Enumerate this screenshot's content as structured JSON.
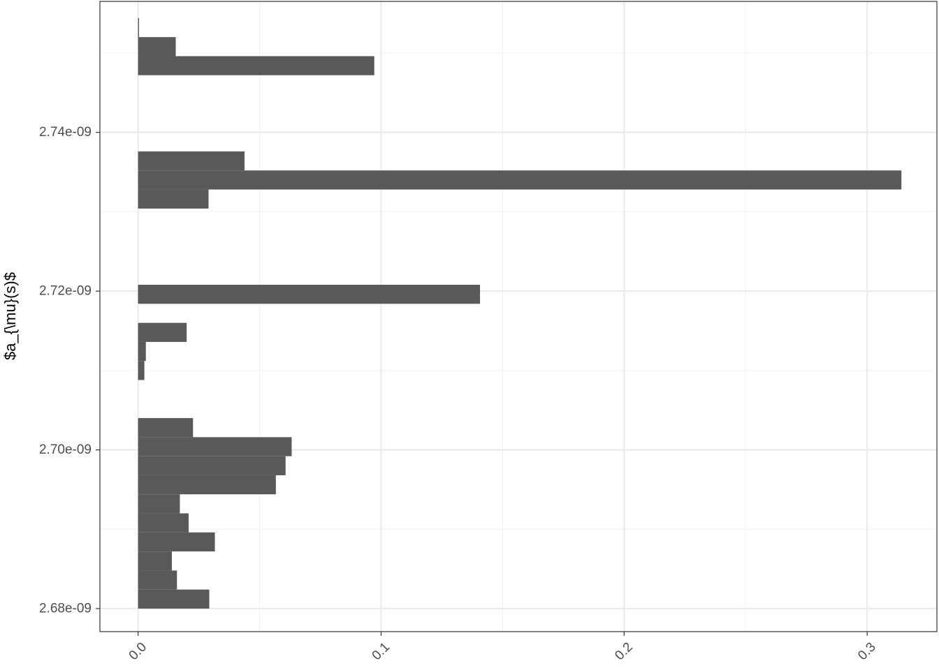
{
  "chart_data": {
    "type": "bar",
    "orientation": "horizontal",
    "ylabel": "$a_{\\mu}(s)$",
    "xlabel": "",
    "x_ticks": [
      {
        "value": 0.0,
        "label": "0.0"
      },
      {
        "value": 0.1,
        "label": "0.1"
      },
      {
        "value": 0.2,
        "label": "0.2"
      },
      {
        "value": 0.3,
        "label": "0.3"
      }
    ],
    "y_ticks": [
      {
        "value": 2.68e-09,
        "label": "2.68e-09"
      },
      {
        "value": 2.7e-09,
        "label": "2.70e-09"
      },
      {
        "value": 2.72e-09,
        "label": "2.72e-09"
      },
      {
        "value": 2.74e-09,
        "label": "2.74e-09"
      }
    ],
    "xlim": [
      -0.0157,
      0.3287
    ],
    "ylim": [
      2.6771e-09,
      2.7565e-09
    ],
    "grid": true,
    "bin_width": 2.4e-12,
    "bars": [
      {
        "y": 2.6812e-09,
        "value": 0.0293
      },
      {
        "y": 2.6836e-09,
        "value": 0.016
      },
      {
        "y": 2.686e-09,
        "value": 0.0139
      },
      {
        "y": 2.6884e-09,
        "value": 0.0316
      },
      {
        "y": 2.6908e-09,
        "value": 0.0208
      },
      {
        "y": 2.6932e-09,
        "value": 0.0172
      },
      {
        "y": 2.6956e-09,
        "value": 0.0567
      },
      {
        "y": 2.698e-09,
        "value": 0.0607
      },
      {
        "y": 2.7004e-09,
        "value": 0.0632
      },
      {
        "y": 2.7028e-09,
        "value": 0.0226
      },
      {
        "y": 2.71e-09,
        "value": 0.0026
      },
      {
        "y": 2.7124e-09,
        "value": 0.0032
      },
      {
        "y": 2.7148e-09,
        "value": 0.02
      },
      {
        "y": 2.7196e-09,
        "value": 0.1407
      },
      {
        "y": 2.7316e-09,
        "value": 0.029
      },
      {
        "y": 2.734e-09,
        "value": 0.3141
      },
      {
        "y": 2.7364e-09,
        "value": 0.0438
      },
      {
        "y": 2.7484e-09,
        "value": 0.0972
      },
      {
        "y": 2.7508e-09,
        "value": 0.0155
      },
      {
        "y": 2.7532e-09,
        "value": 0.0004
      }
    ],
    "colors": {
      "bar": "#595959",
      "panel_background": "#ffffff",
      "panel_border": "#333333",
      "grid_major": "#ebebeb",
      "grid_minor": "#f2f2f2",
      "tick_text": "#4d4d4d",
      "axis_ticks": "#333333"
    }
  }
}
